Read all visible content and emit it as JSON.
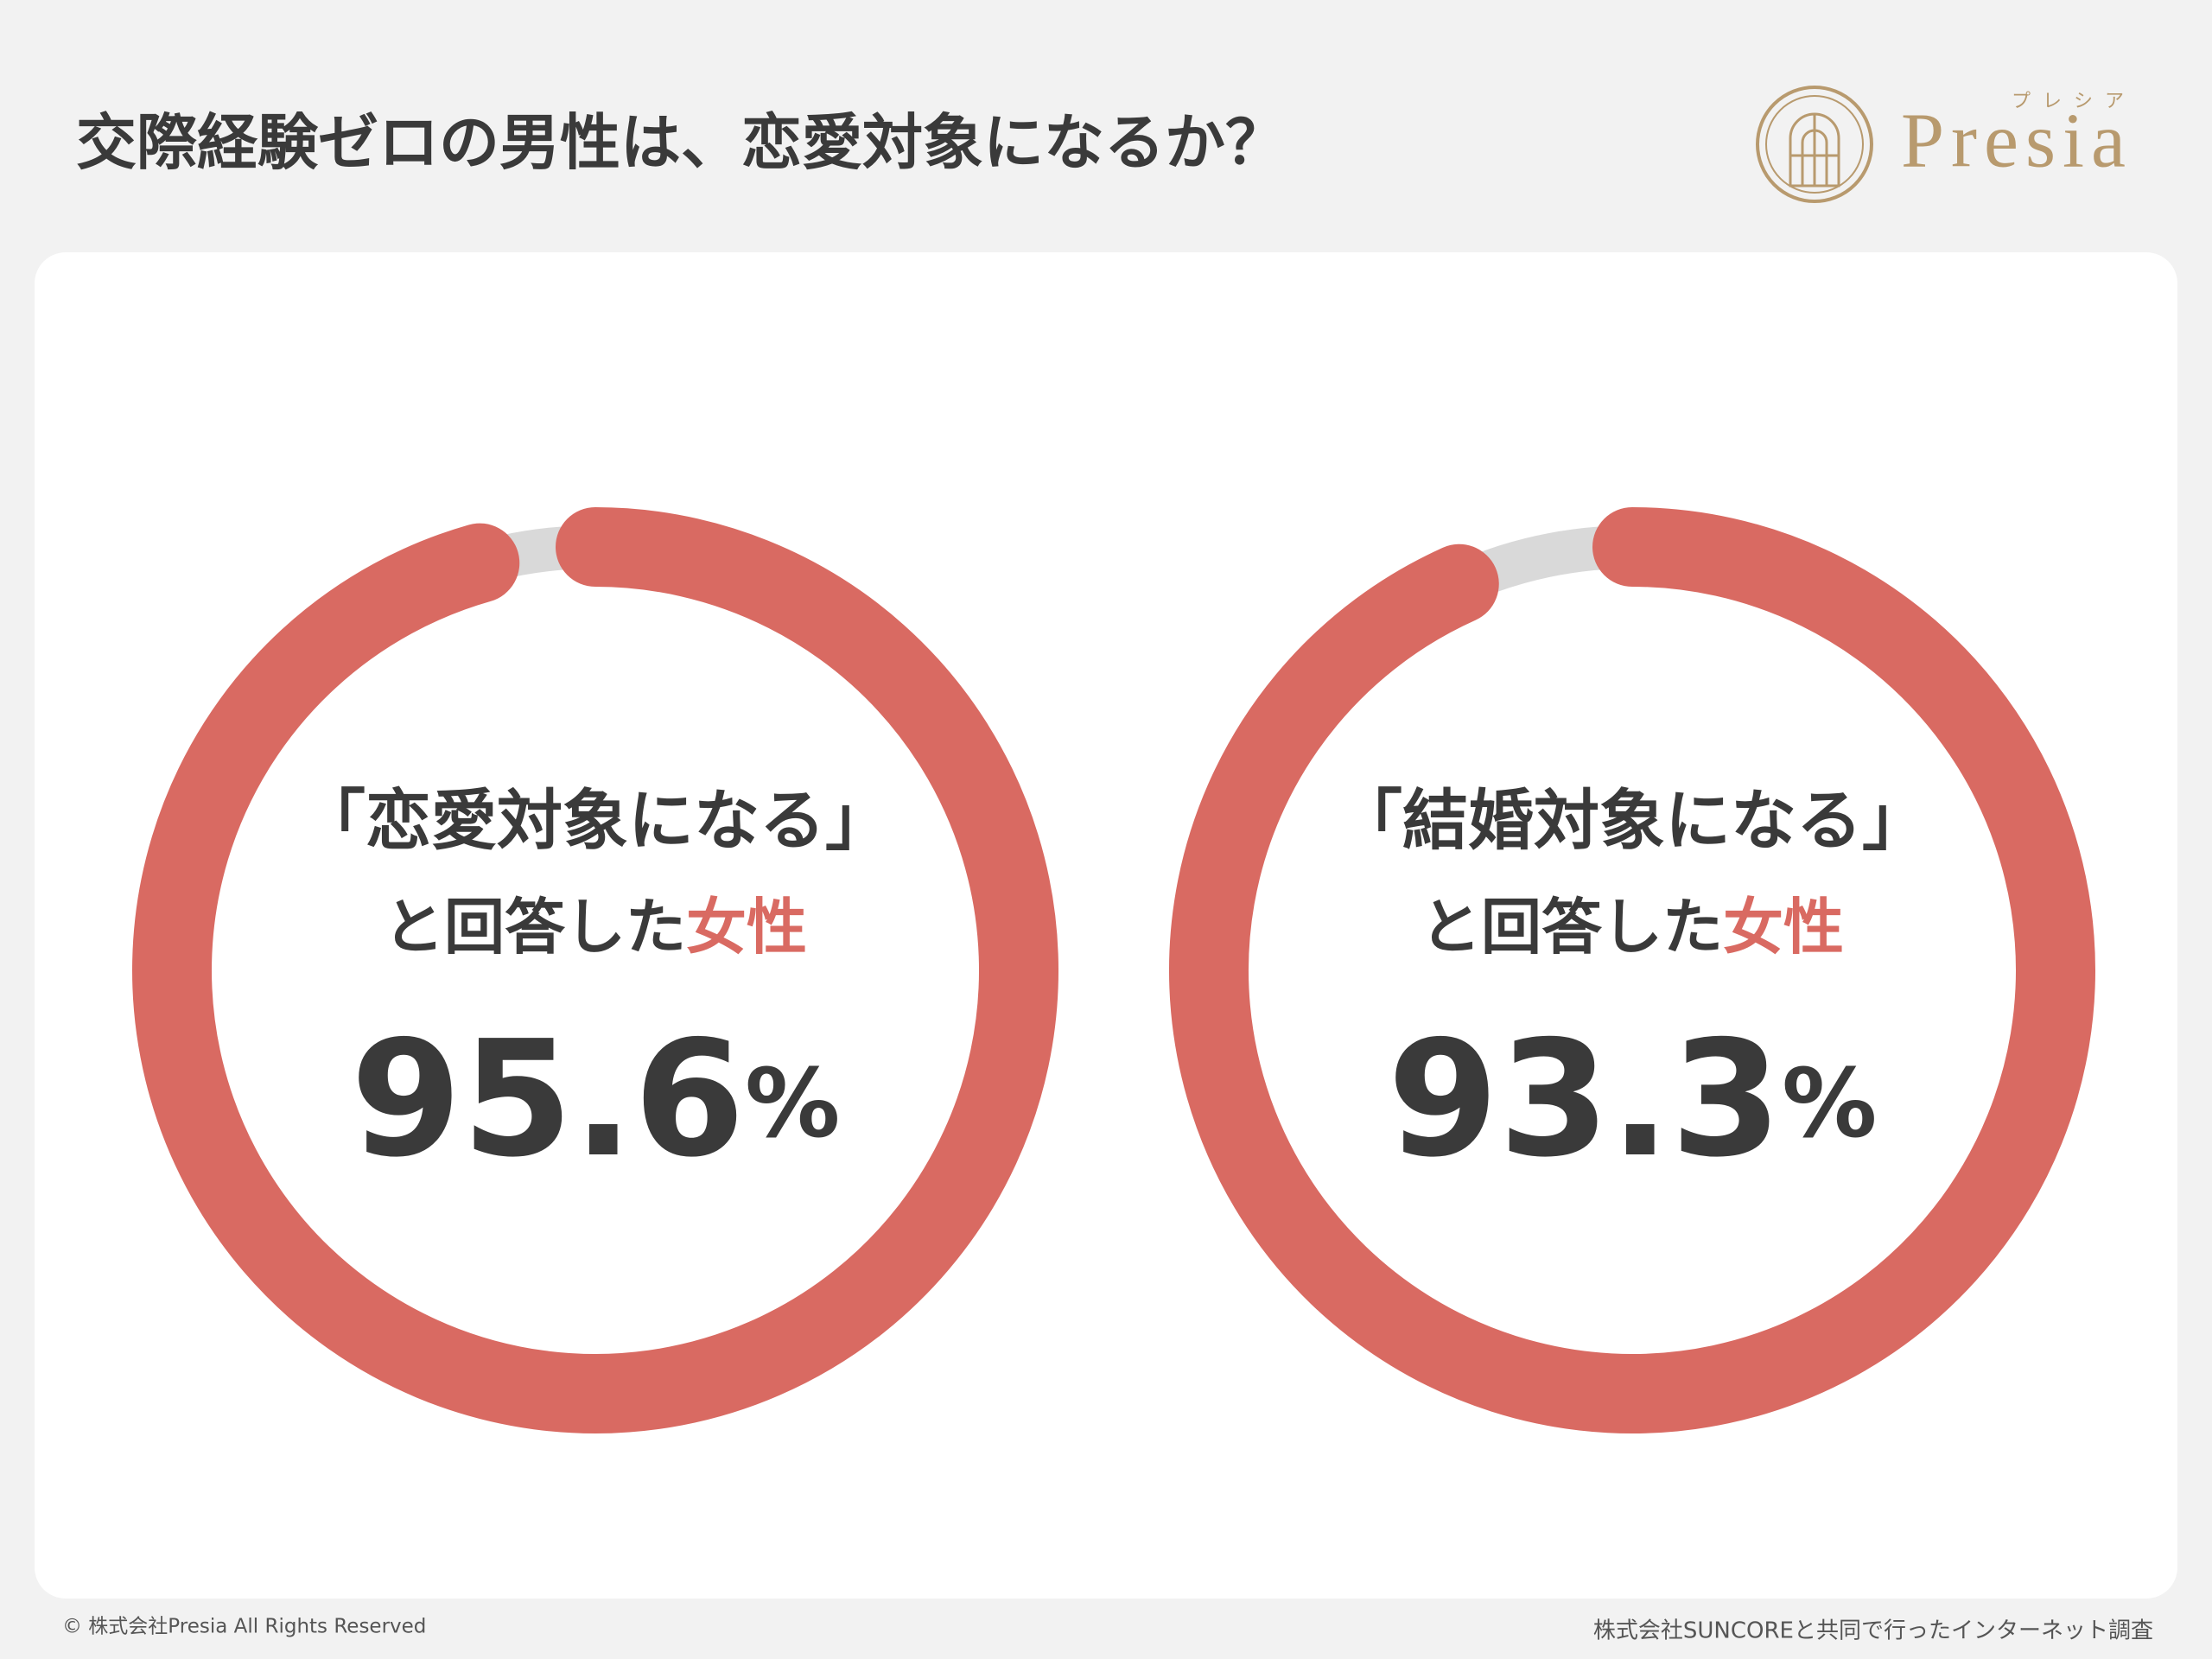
{
  "title": "交際経験ゼロの男性は、恋愛対象になるか？",
  "logo": {
    "kana": "プレシア",
    "name": "Presia"
  },
  "chart_data": [
    {
      "type": "gauge",
      "label": "「恋愛対象になる」",
      "sublabel": "と回答した",
      "highlight": "女性",
      "values": [
        95.6
      ],
      "value_labels": [
        "95.6%"
      ],
      "color": "#d96a62",
      "track_color": "#d9d9d9"
    },
    {
      "type": "gauge",
      "label": "「結婚対象になる」",
      "sublabel": "と回答した",
      "highlight": "女性",
      "values": [
        93.3
      ],
      "value_labels": [
        "93.3%"
      ],
      "color": "#d96a62",
      "track_color": "#d9d9d9"
    }
  ],
  "footer": {
    "copyright": "© 株式会社Presia All Rights Reserved",
    "source": "株式会社SUNCOREと共同で行ったインターネット調査"
  }
}
